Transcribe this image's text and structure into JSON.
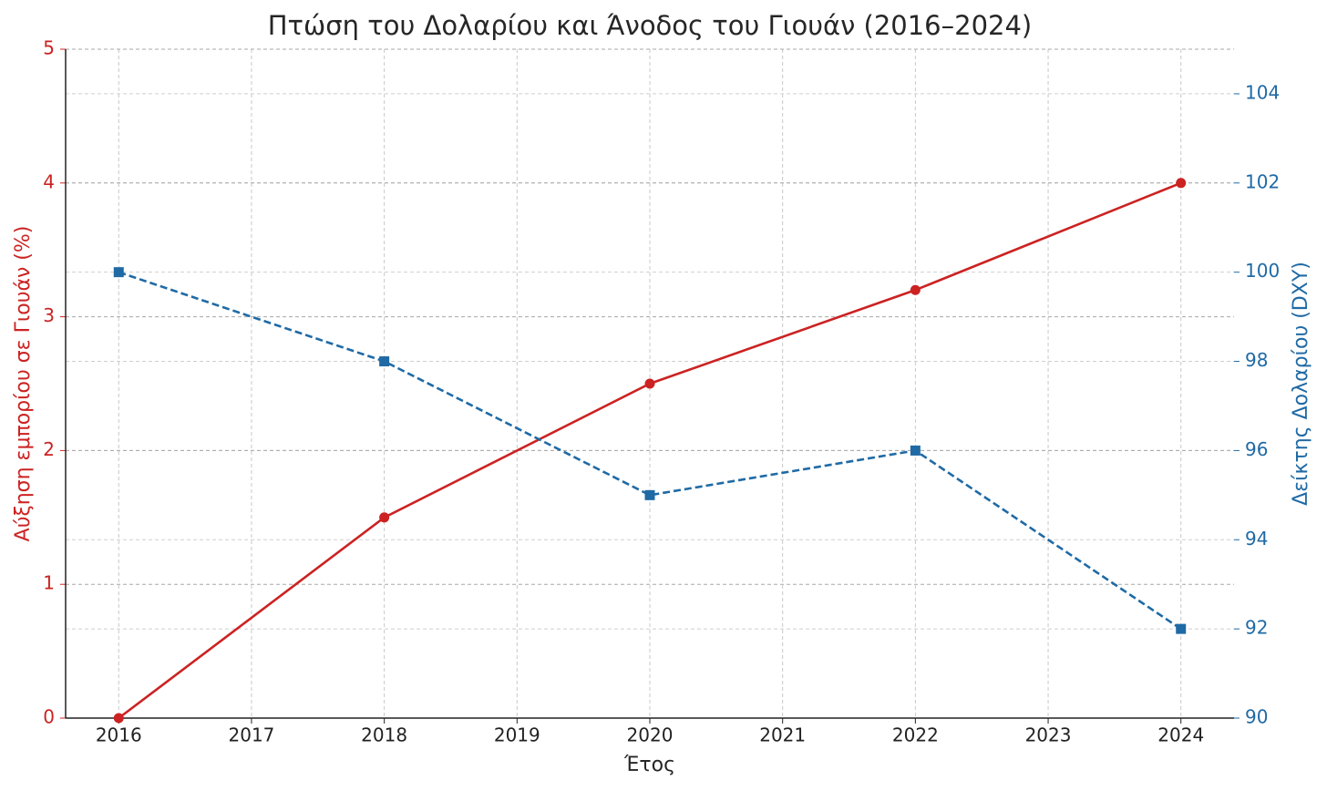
{
  "chart_data": {
    "type": "line",
    "title": "Πτώση του Δολαρίου και Άνοδος του Γιουάν (2016–2024)",
    "x_label": "Έτος",
    "y_label": "Αύξηση εμπορίου σε Γιουάν (%)",
    "y2_label": "Δείκτης Δολαρίου (DXY)",
    "y_label_color": "#cc2222",
    "y2_label_color": "#1f6aa5",
    "x": [
      2016,
      2018,
      2020,
      2022,
      2024
    ],
    "series": [
      {
        "color": "#cc2222",
        "marker": "circle",
        "linestyle": "solid",
        "axis": "y",
        "values": [
          0,
          1.5,
          2.5,
          3.2,
          4
        ]
      },
      {
        "color": "#1f6aa5",
        "marker": "square",
        "linestyle": "dashed",
        "axis": "y2",
        "values": [
          100,
          98,
          95,
          96,
          92
        ]
      }
    ],
    "xlim": [
      2015.6,
      2024.4
    ],
    "xticks": [
      2016,
      2017,
      2018,
      2019,
      2020,
      2021,
      2022,
      2023,
      2024
    ],
    "ylim": [
      0,
      5
    ],
    "yticks": [
      0,
      1,
      2,
      3,
      4,
      5
    ],
    "y2lim": [
      90,
      105
    ],
    "y2ticks": [
      90,
      92,
      94,
      96,
      98,
      100,
      102,
      104
    ],
    "grid": true
  }
}
